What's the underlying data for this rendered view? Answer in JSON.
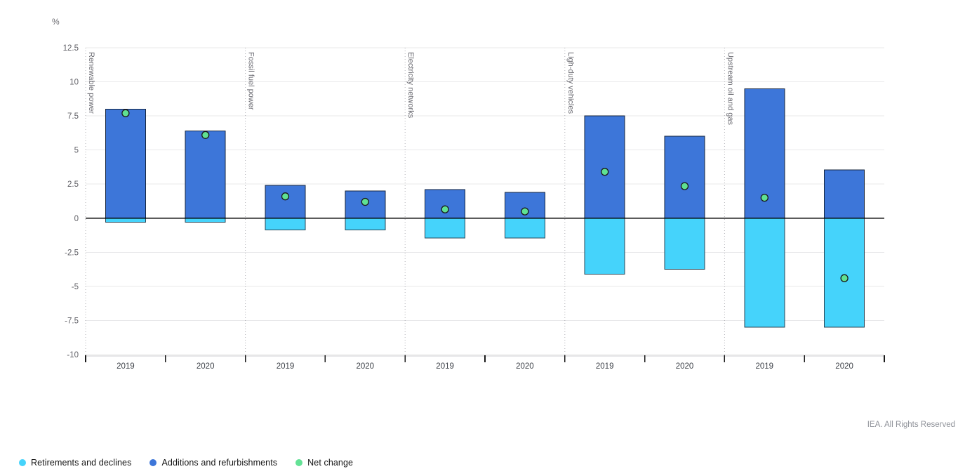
{
  "header": {
    "unit_label": "%"
  },
  "footer": {
    "credit": "IEA. All Rights Reserved"
  },
  "legend": {
    "items": [
      {
        "key": "retirements",
        "label": "Retirements and declines",
        "color": "#45d3fb"
      },
      {
        "key": "additions",
        "label": "Additions and refurbishments",
        "color": "#3d76d9"
      },
      {
        "key": "net",
        "label": "Net change",
        "color": "#64e296"
      }
    ]
  },
  "chart_data": {
    "type": "bar",
    "subtype": "stacked-columns-with-net-change-points",
    "title": "",
    "xlabel": "",
    "ylabel": "%",
    "ylim": [
      -10,
      12.5
    ],
    "ytick_step": 2.5,
    "ytick_labels": [
      "12.5",
      "10",
      "7.5",
      "5",
      "2.5",
      "0",
      "-2.5",
      "-5",
      "-7.5",
      "-10"
    ],
    "grid": true,
    "legend_position": "bottom-left",
    "series_meta": {
      "additions": {
        "name": "Additions and refurbishments",
        "color": "#3d76d9",
        "border": "#16263e"
      },
      "retirements": {
        "name": "Retirements and declines",
        "color": "#45d3fb",
        "border": "#2a4757"
      },
      "net": {
        "name": "Net change",
        "color": "#5fe192",
        "border": "#1a1a1a"
      }
    },
    "groups": [
      {
        "label": "Renewable power",
        "bars": [
          {
            "category": "2019",
            "additions": 8.0,
            "retirements": -0.3,
            "net": 7.7
          },
          {
            "category": "2020",
            "additions": 6.4,
            "retirements": -0.3,
            "net": 6.1
          }
        ]
      },
      {
        "label": "Fossil fuel power",
        "bars": [
          {
            "category": "2019",
            "additions": 2.4,
            "retirements": -0.85,
            "net": 1.6
          },
          {
            "category": "2020",
            "additions": 2.0,
            "retirements": -0.85,
            "net": 1.2
          }
        ]
      },
      {
        "label": "Electricity networks",
        "bars": [
          {
            "category": "2019",
            "additions": 2.1,
            "retirements": -1.45,
            "net": 0.65
          },
          {
            "category": "2020",
            "additions": 1.9,
            "retirements": -1.45,
            "net": 0.5
          }
        ]
      },
      {
        "label": "Ligh-duty vehicles",
        "bars": [
          {
            "category": "2019",
            "additions": 7.5,
            "retirements": -4.1,
            "net": 3.4
          },
          {
            "category": "2020",
            "additions": 6.0,
            "retirements": -3.75,
            "net": 2.35
          }
        ]
      },
      {
        "label": "Upstream oil and gas",
        "bars": [
          {
            "category": "2019",
            "additions": 9.5,
            "retirements": -8.0,
            "net": 1.5
          },
          {
            "category": "2020",
            "additions": 3.55,
            "retirements": -8.0,
            "net": -4.4
          }
        ]
      }
    ]
  }
}
